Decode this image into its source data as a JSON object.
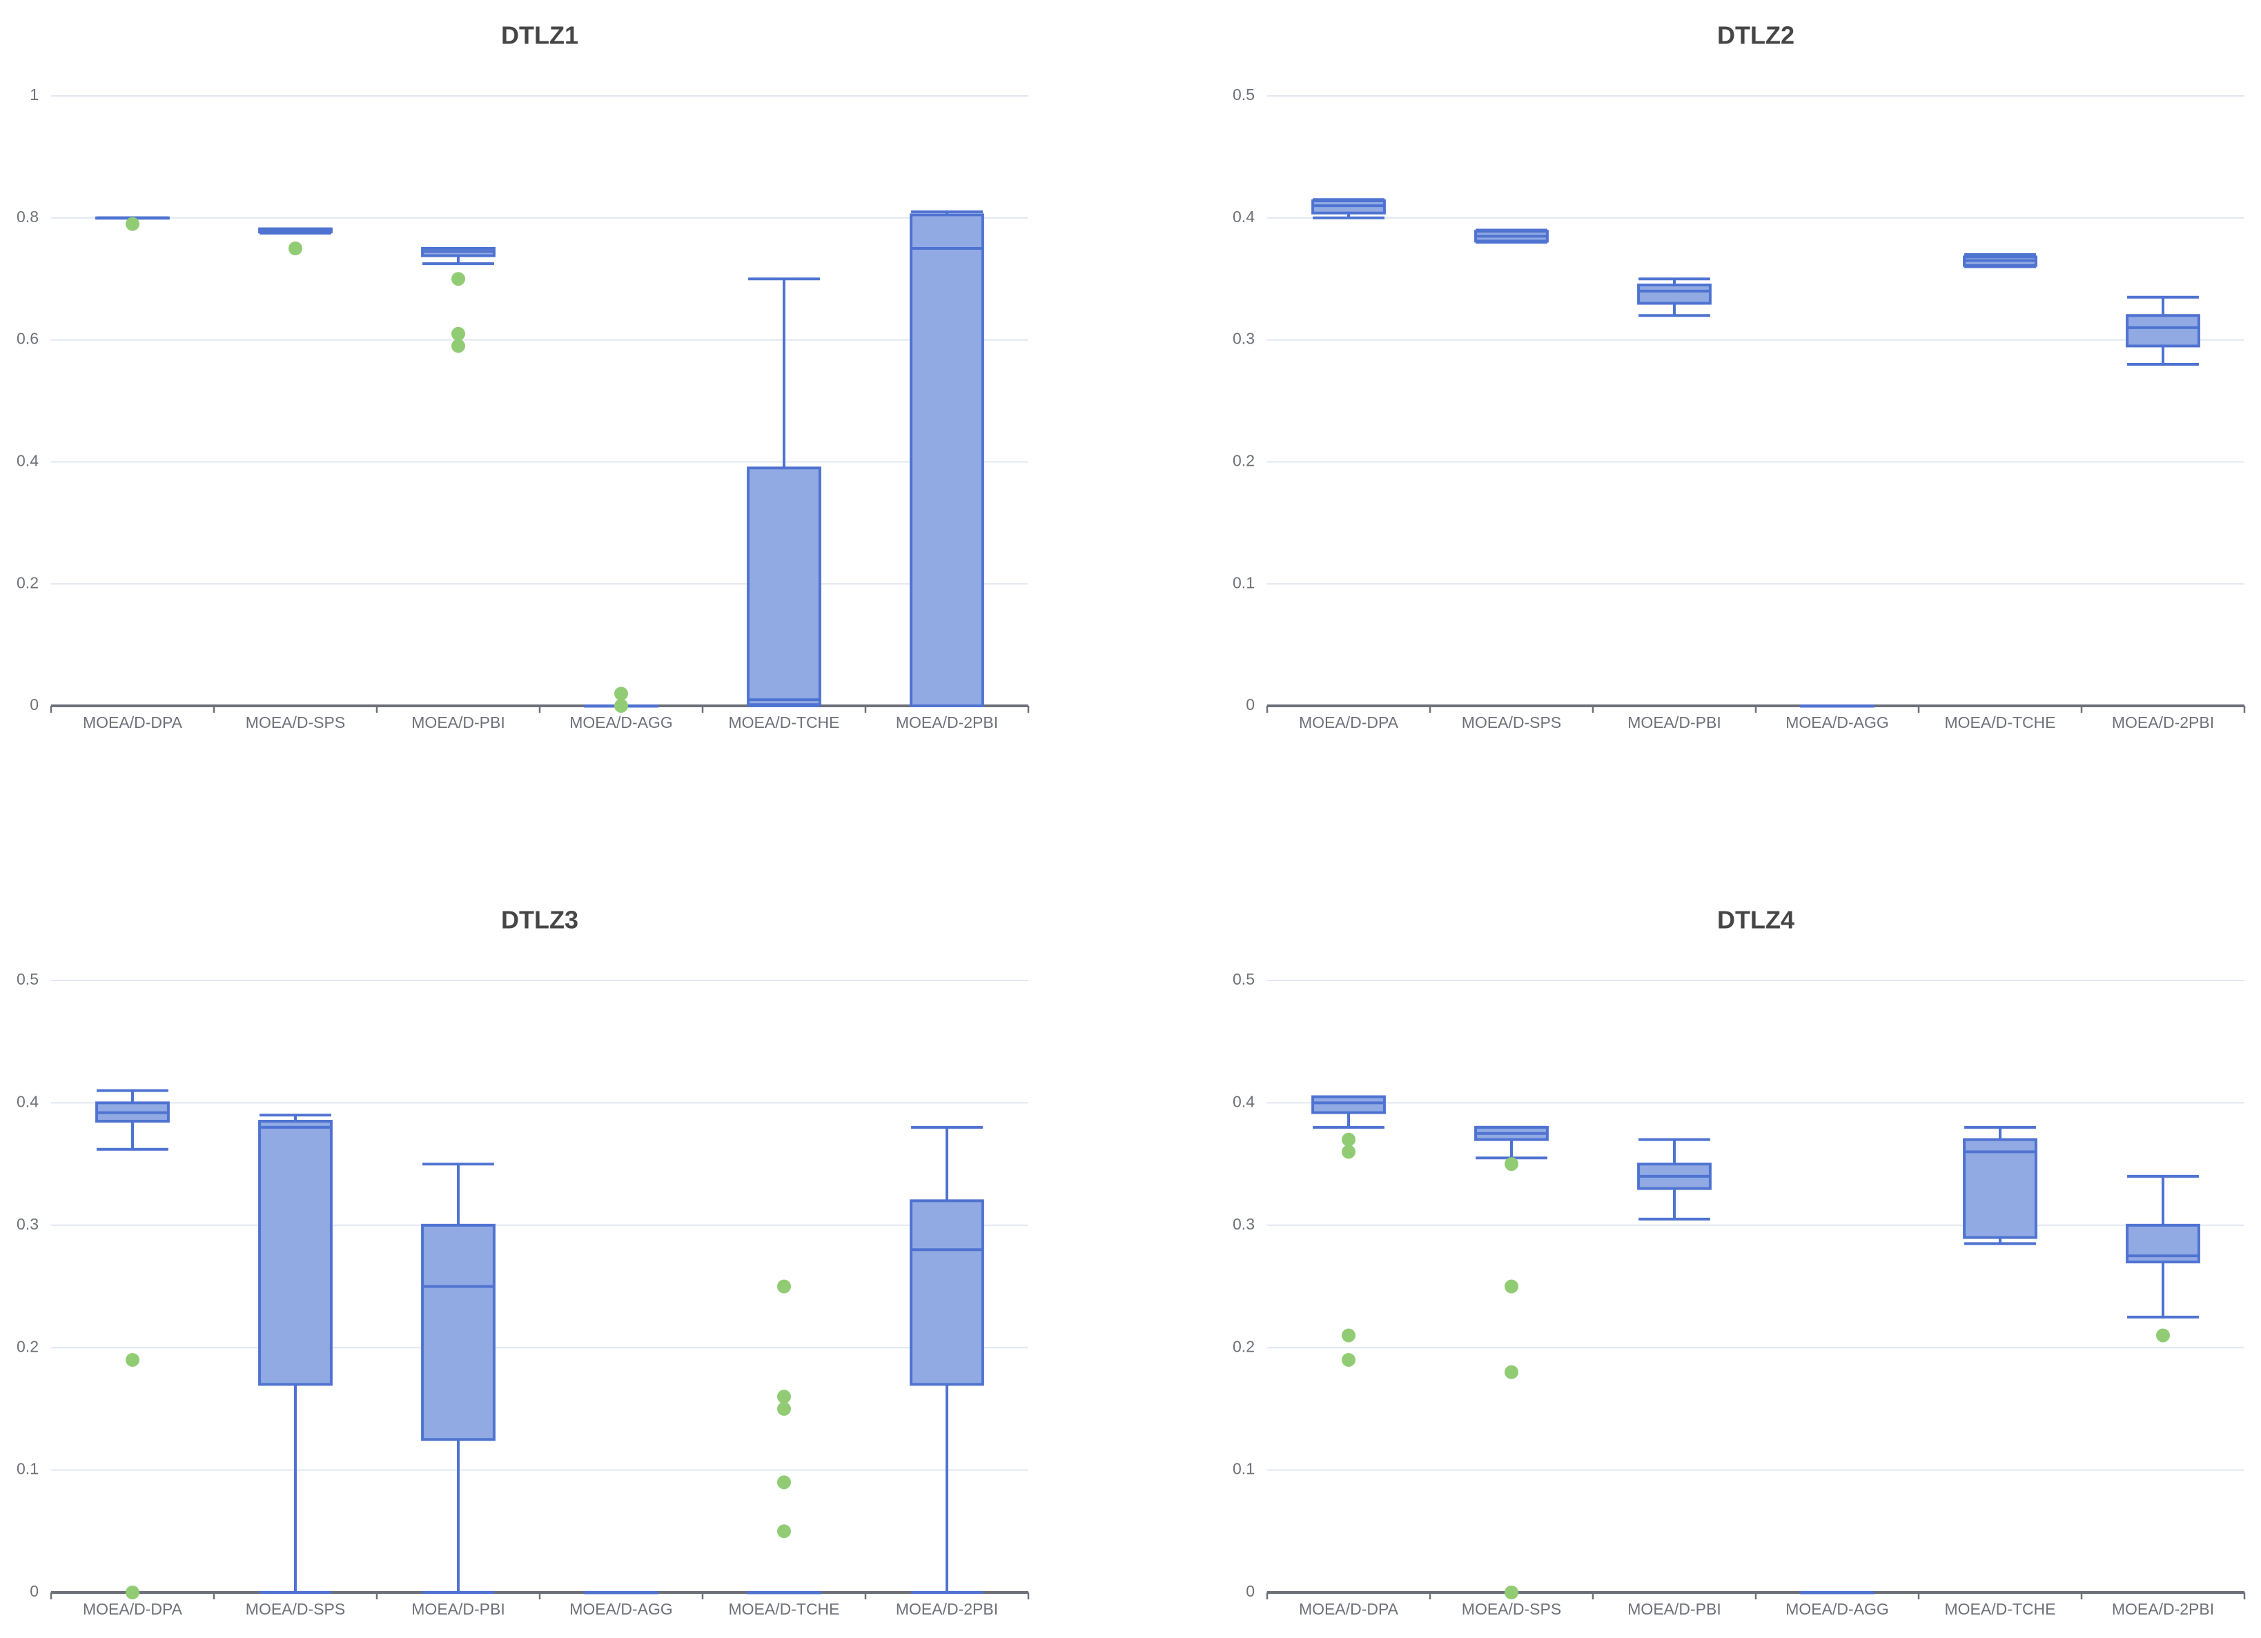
{
  "colors": {
    "box_fill": "#91aae3",
    "box_stroke": "#4f73d1",
    "outlier": "#91cc75",
    "grid": "#e0e6f1",
    "axis": "#6e7079",
    "title": "#464646"
  },
  "chart_data": [
    {
      "type": "boxplot",
      "title": "DTLZ1",
      "xlabel": "",
      "ylabel": "",
      "ylim": [
        0,
        1
      ],
      "yticks": [
        0,
        0.2,
        0.4,
        0.6,
        0.8,
        1
      ],
      "ytick_labels": [
        "0",
        "0.2",
        "0.4",
        "0.6",
        "0.8",
        "1"
      ],
      "categories": [
        "MOEA/D-DPA",
        "MOEA/D-SPS",
        "MOEA/D-PBI",
        "MOEA/D-AGG",
        "MOEA/D-TCHE",
        "MOEA/D-2PBI"
      ],
      "boxes": [
        {
          "min": 0.8,
          "q1": 0.8,
          "median": 0.8,
          "q3": 0.8,
          "max": 0.8
        },
        {
          "min": 0.775,
          "q1": 0.777,
          "median": 0.779,
          "q3": 0.782,
          "max": 0.782
        },
        {
          "min": 0.725,
          "q1": 0.738,
          "median": 0.745,
          "q3": 0.75,
          "max": 0.75
        },
        {
          "min": 0,
          "q1": 0,
          "median": 0,
          "q3": 0,
          "max": 0
        },
        {
          "min": 0,
          "q1": 0.002,
          "median": 0.01,
          "q3": 0.39,
          "max": 0.7
        },
        {
          "min": 0,
          "q1": 0,
          "median": 0.75,
          "q3": 0.805,
          "max": 0.81
        }
      ],
      "outliers": [
        {
          "category": "MOEA/D-DPA",
          "value": 0.79
        },
        {
          "category": "MOEA/D-SPS",
          "value": 0.75
        },
        {
          "category": "MOEA/D-PBI",
          "value": 0.7
        },
        {
          "category": "MOEA/D-PBI",
          "value": 0.61
        },
        {
          "category": "MOEA/D-PBI",
          "value": 0.59
        },
        {
          "category": "MOEA/D-AGG",
          "value": 0.02
        },
        {
          "category": "MOEA/D-AGG",
          "value": 0.0
        }
      ]
    },
    {
      "type": "boxplot",
      "title": "DTLZ2",
      "xlabel": "",
      "ylabel": "",
      "ylim": [
        0,
        0.5
      ],
      "yticks": [
        0,
        0.1,
        0.2,
        0.3,
        0.4,
        0.5
      ],
      "ytick_labels": [
        "0",
        "0.1",
        "0.2",
        "0.3",
        "0.4",
        "0.5"
      ],
      "categories": [
        "MOEA/D-DPA",
        "MOEA/D-SPS",
        "MOEA/D-PBI",
        "MOEA/D-AGG",
        "MOEA/D-TCHE",
        "MOEA/D-2PBI"
      ],
      "boxes": [
        {
          "min": 0.4,
          "q1": 0.404,
          "median": 0.41,
          "q3": 0.414,
          "max": 0.415
        },
        {
          "min": 0.38,
          "q1": 0.381,
          "median": 0.385,
          "q3": 0.389,
          "max": 0.39
        },
        {
          "min": 0.32,
          "q1": 0.33,
          "median": 0.34,
          "q3": 0.345,
          "max": 0.35
        },
        {
          "min": 0,
          "q1": 0,
          "median": 0,
          "q3": 0,
          "max": 0
        },
        {
          "min": 0.36,
          "q1": 0.361,
          "median": 0.365,
          "q3": 0.368,
          "max": 0.37
        },
        {
          "min": 0.28,
          "q1": 0.295,
          "median": 0.31,
          "q3": 0.32,
          "max": 0.335
        }
      ],
      "outliers": []
    },
    {
      "type": "boxplot",
      "title": "DTLZ3",
      "xlabel": "",
      "ylabel": "",
      "ylim": [
        0,
        0.5
      ],
      "yticks": [
        0,
        0.1,
        0.2,
        0.3,
        0.4,
        0.5
      ],
      "ytick_labels": [
        "0",
        "0.1",
        "0.2",
        "0.3",
        "0.4",
        "0.5"
      ],
      "categories": [
        "MOEA/D-DPA",
        "MOEA/D-SPS",
        "MOEA/D-PBI",
        "MOEA/D-AGG",
        "MOEA/D-TCHE",
        "MOEA/D-2PBI"
      ],
      "boxes": [
        {
          "min": 0.362,
          "q1": 0.385,
          "median": 0.392,
          "q3": 0.4,
          "max": 0.41
        },
        {
          "min": 0,
          "q1": 0.17,
          "median": 0.38,
          "q3": 0.385,
          "max": 0.39
        },
        {
          "min": 0,
          "q1": 0.125,
          "median": 0.25,
          "q3": 0.3,
          "max": 0.35
        },
        {
          "min": 0,
          "q1": 0,
          "median": 0,
          "q3": 0,
          "max": 0
        },
        {
          "min": 0,
          "q1": 0,
          "median": 0,
          "q3": 0,
          "max": 0
        },
        {
          "min": 0,
          "q1": 0.17,
          "median": 0.28,
          "q3": 0.32,
          "max": 0.38
        }
      ],
      "outliers": [
        {
          "category": "MOEA/D-DPA",
          "value": 0.19
        },
        {
          "category": "MOEA/D-DPA",
          "value": 0.0
        },
        {
          "category": "MOEA/D-TCHE",
          "value": 0.25
        },
        {
          "category": "MOEA/D-TCHE",
          "value": 0.16
        },
        {
          "category": "MOEA/D-TCHE",
          "value": 0.15
        },
        {
          "category": "MOEA/D-TCHE",
          "value": 0.09
        },
        {
          "category": "MOEA/D-TCHE",
          "value": 0.05
        }
      ]
    },
    {
      "type": "boxplot",
      "title": "DTLZ4",
      "xlabel": "",
      "ylabel": "",
      "ylim": [
        0,
        0.5
      ],
      "yticks": [
        0,
        0.1,
        0.2,
        0.3,
        0.4,
        0.5
      ],
      "ytick_labels": [
        "0",
        "0.1",
        "0.2",
        "0.3",
        "0.4",
        "0.5"
      ],
      "categories": [
        "MOEA/D-DPA",
        "MOEA/D-SPS",
        "MOEA/D-PBI",
        "MOEA/D-AGG",
        "MOEA/D-TCHE",
        "MOEA/D-2PBI"
      ],
      "boxes": [
        {
          "min": 0.38,
          "q1": 0.392,
          "median": 0.4,
          "q3": 0.405,
          "max": 0.405
        },
        {
          "min": 0.355,
          "q1": 0.37,
          "median": 0.375,
          "q3": 0.38,
          "max": 0.38
        },
        {
          "min": 0.305,
          "q1": 0.33,
          "median": 0.34,
          "q3": 0.35,
          "max": 0.37
        },
        {
          "min": 0,
          "q1": 0,
          "median": 0,
          "q3": 0,
          "max": 0
        },
        {
          "min": 0.285,
          "q1": 0.29,
          "median": 0.36,
          "q3": 0.37,
          "max": 0.38
        },
        {
          "min": 0.225,
          "q1": 0.27,
          "median": 0.275,
          "q3": 0.3,
          "max": 0.34
        }
      ],
      "outliers": [
        {
          "category": "MOEA/D-DPA",
          "value": 0.37
        },
        {
          "category": "MOEA/D-DPA",
          "value": 0.36
        },
        {
          "category": "MOEA/D-DPA",
          "value": 0.21
        },
        {
          "category": "MOEA/D-DPA",
          "value": 0.19
        },
        {
          "category": "MOEA/D-SPS",
          "value": 0.35
        },
        {
          "category": "MOEA/D-SPS",
          "value": 0.25
        },
        {
          "category": "MOEA/D-SPS",
          "value": 0.18
        },
        {
          "category": "MOEA/D-SPS",
          "value": 0.0
        },
        {
          "category": "MOEA/D-2PBI",
          "value": 0.21
        }
      ]
    }
  ]
}
